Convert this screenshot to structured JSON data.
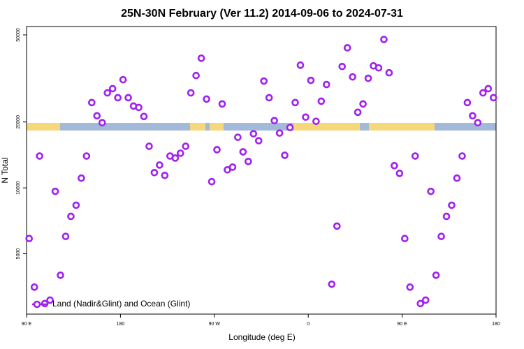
{
  "chart_data": {
    "type": "scatter",
    "title": "25N-30N February (Ver 11.2)   2014-09-06 to 2024-07-31",
    "x_label": "Longitude (deg E)",
    "y_label": "N Total",
    "log_y": true,
    "legend": "lower left",
    "xlim": [
      90,
      540
    ],
    "xticks": [
      {
        "value": 90,
        "label": "90 E"
      },
      180,
      {
        "value": 270,
        "label": "90 W"
      },
      {
        "value": 360,
        "label": "0"
      },
      {
        "value": 450,
        "label": "90 E"
      },
      {
        "value": 540,
        "label": "180"
      }
    ],
    "ylim": [
      2650,
      54600
    ],
    "yticks": [
      5000,
      10000,
      20000,
      50000
    ],
    "series": [
      {
        "name": "Land (Nadir&Glint) and Ocean (Glint)",
        "color": "#a020f0",
        "x": [
          92.5,
          97.5,
          102.5,
          107.5,
          112.5,
          117.5,
          122.5,
          127.5,
          132.5,
          137.5,
          142.5,
          147.5,
          152.5,
          157.5,
          162.5,
          167.5,
          172.5,
          177.5,
          182.5,
          187.5,
          192.5,
          197.5,
          202.5,
          207.5,
          212.5,
          217.5,
          222.5,
          227.5,
          232.5,
          237.5,
          242.5,
          247.5,
          252.5,
          257.5,
          262.5,
          267.5,
          272.5,
          277.5,
          282.5,
          287.5,
          292.5,
          297.5,
          302.5,
          307.5,
          312.5,
          317.5,
          322.5,
          327.5,
          332.5,
          337.5,
          342.5,
          347.5,
          352.5,
          357.5,
          362.5,
          367.5,
          372.5,
          377.5,
          382.5,
          387.5,
          392.5,
          397.5,
          402.5,
          407.5,
          412.5,
          417.5,
          422.5,
          427.5,
          432.5,
          437.5,
          442.5,
          447.5,
          452.5,
          457.5,
          462.5,
          467.5,
          472.5,
          477.5,
          482.5,
          487.5,
          492.5,
          497.5,
          502.5,
          507.5,
          512.5,
          517.5,
          522.5,
          527.5,
          532.5,
          537.5
        ],
        "values": [
          5870,
          3520,
          13980,
          2960,
          3070,
          9640,
          3990,
          6000,
          7410,
          8330,
          11080,
          13980,
          24530,
          21350,
          19850,
          27170,
          28390,
          25820,
          31210,
          25820,
          23650,
          23310,
          21200,
          15490,
          11740,
          12720,
          11400,
          13980,
          13680,
          14400,
          15490,
          27170,
          32610,
          39130,
          25450,
          10680,
          14940,
          24180,
          12090,
          12440,
          17030,
          14610,
          13200,
          17670,
          16420,
          30760,
          25820,
          20290,
          17800,
          14090,
          18860,
          24530,
          36370,
          21050,
          30980,
          20150,
          24890,
          29660,
          3630,
          6690,
          35850,
          43650,
          32140,
          22150,
          24180,
          31670,
          36110,
          35340,
          47660,
          33570,
          12630,
          11650,
          5870,
          3520,
          13980,
          2960,
          3070,
          9640,
          3990,
          6000,
          7410,
          8330,
          11080,
          13980,
          24530,
          21350,
          19850,
          27170,
          28390,
          25820
        ]
      }
    ]
  }
}
